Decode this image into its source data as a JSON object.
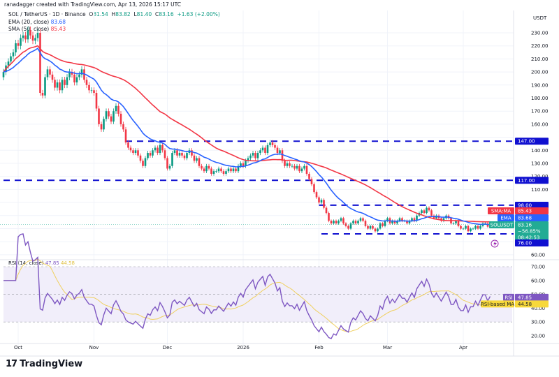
{
  "header": {
    "credit": "ranadagger created with TradingView.com, Apr 13, 2026 15:17 UTC",
    "currency": "USDT"
  },
  "legend": {
    "symbol": "SOL / TetherUS · 1D · Binance",
    "o_label": "O",
    "o": "81.54",
    "h_label": "H",
    "h": "83.82",
    "l_label": "L",
    "l": "81.40",
    "c_label": "C",
    "c": "83.16",
    "change": "+1.63 (+2.00%)",
    "ema_label": "EMA (20, close)",
    "ema_value": "83.68",
    "sma_label": "SMA (50, close)",
    "sma_value": "85.43",
    "rsi_label": "RSI (14, close)",
    "rsi_value": "47.85",
    "rsi_ma_value": "44.58"
  },
  "tags": {
    "sma_name": "SMA:MA",
    "sma": "85.43",
    "ema_name": "EMA",
    "ema": "83.68",
    "symbol_name": "SOLUSDT",
    "price": "83.16",
    "pct": "−56.85%",
    "countdown": "08:42:53",
    "rsi_name": "RSI",
    "rsi": "47.85",
    "rsi_ma_name": "RSI-based MA",
    "rsi_ma": "44.58"
  },
  "brand": "TradingView",
  "colors": {
    "up": "#089981",
    "down": "#f23645",
    "ema": "#2962ff",
    "sma": "#f23645",
    "level": "#1010d0",
    "rsi": "#7e57c2",
    "rsi_ma": "#f0d060",
    "rsi_band": "#f1eefa",
    "last": "#22ab94"
  },
  "chart_data": [
    {
      "type": "candlestick",
      "symbol": "SOLUSDT",
      "interval": "1D",
      "start_date": "2025-09-25",
      "end_date": "2026-04-13",
      "y_ticks": [
        "230.00",
        "220.00",
        "210.00",
        "200.00",
        "190.00",
        "180.00",
        "170.00",
        "160.00",
        "140.00",
        "130.00",
        "120.00",
        "110.00",
        "60.00"
      ],
      "ylim": [
        60,
        230
      ],
      "x_ticks": [
        "Oct",
        "Nov",
        "Dec",
        "2026",
        "Feb",
        "Mar",
        "Apr"
      ],
      "levels": [
        {
          "value": 147,
          "label": "147.00",
          "from": "2025-11-14"
        },
        {
          "value": 117,
          "label": "117.00",
          "from": "2025-09-25"
        },
        {
          "value": 98,
          "label": "98.00",
          "from": "2026-02-01"
        },
        {
          "value": 76,
          "label": "76.00",
          "from": "2026-02-02"
        }
      ],
      "closes": [
        200,
        205,
        208,
        212,
        215,
        222,
        220,
        226,
        228,
        225,
        232,
        228,
        224,
        226,
        230,
        184,
        182,
        196,
        202,
        198,
        194,
        188,
        192,
        186,
        194,
        190,
        196,
        200,
        198,
        192,
        196,
        198,
        202,
        194,
        190,
        186,
        186,
        184,
        172,
        160,
        156,
        164,
        170,
        166,
        162,
        170,
        174,
        168,
        160,
        156,
        146,
        142,
        140,
        138,
        140,
        136,
        132,
        128,
        134,
        138,
        136,
        140,
        142,
        138,
        144,
        140,
        134,
        126,
        128,
        138,
        140,
        136,
        138,
        136,
        134,
        138,
        140,
        136,
        132,
        134,
        128,
        126,
        124,
        128,
        126,
        122,
        124,
        124,
        126,
        124,
        122,
        124,
        126,
        124,
        126,
        124,
        128,
        130,
        128,
        132,
        134,
        136,
        138,
        134,
        138,
        140,
        142,
        138,
        144,
        146,
        144,
        142,
        138,
        140,
        132,
        128,
        130,
        128,
        128,
        126,
        128,
        124,
        126,
        128,
        122,
        118,
        114,
        108,
        104,
        100,
        102,
        96,
        92,
        86,
        84,
        86,
        84,
        86,
        88,
        84,
        82,
        80,
        84,
        86,
        84,
        86,
        88,
        86,
        82,
        80,
        82,
        80,
        78,
        80,
        84,
        82,
        86,
        88,
        84,
        86,
        84,
        86,
        88,
        86,
        86,
        84,
        86,
        88,
        86,
        90,
        92,
        94,
        92,
        96,
        94,
        90,
        88,
        90,
        88,
        86,
        88,
        90,
        88,
        84,
        84,
        86,
        82,
        80,
        80,
        82,
        78,
        80,
        80,
        82,
        80,
        82,
        84,
        84,
        81.54,
        83.16
      ],
      "series": [
        {
          "name": "EMA (20, close)"
        },
        {
          "name": "SMA (50, close)"
        }
      ]
    },
    {
      "type": "line",
      "title": "RSI (14, close)",
      "y_ticks": [
        "70.00",
        "60.00",
        "50.00",
        "40.00",
        "30.00",
        "20.00"
      ],
      "ylim": [
        15,
        72
      ],
      "band": [
        30,
        70
      ],
      "series": [
        {
          "name": "RSI"
        },
        {
          "name": "RSI-based MA"
        }
      ]
    }
  ]
}
